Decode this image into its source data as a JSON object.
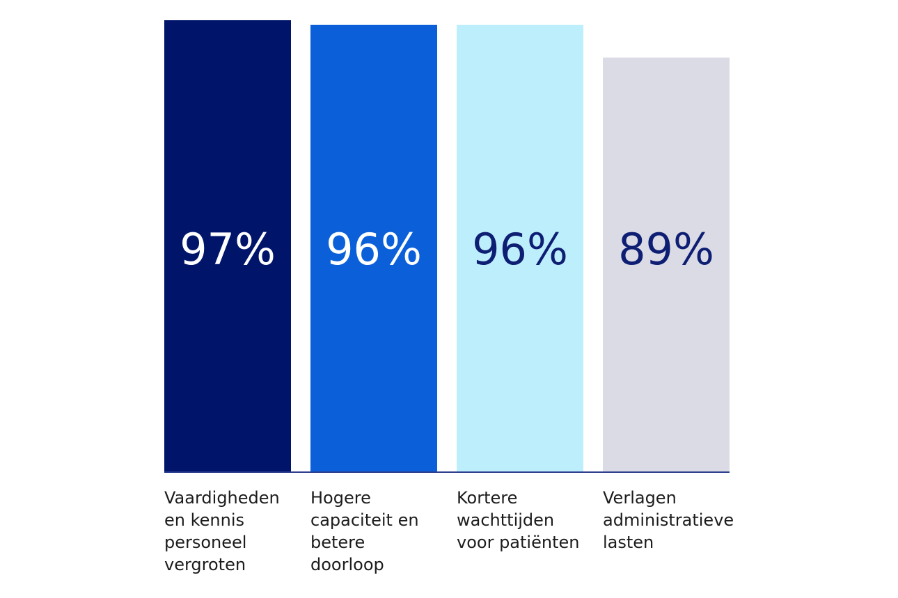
{
  "chart_data": {
    "type": "bar",
    "title": "",
    "xlabel": "",
    "ylabel": "",
    "categories": [
      [
        "Vaardigheden",
        "en kennis",
        "personeel",
        "vergroten"
      ],
      [
        "Hogere",
        "capaciteit en",
        "betere",
        "doorloop"
      ],
      [
        "Kortere",
        "wachttijden",
        "voor patiënten"
      ],
      [
        "Verlagen",
        "administratieve",
        "lasten"
      ]
    ],
    "values": [
      97,
      96,
      96,
      89
    ],
    "value_labels": [
      "97%",
      "96%",
      "96%",
      "89%"
    ],
    "unit": "%",
    "bar_colors": [
      "#00146a",
      "#0b60d9",
      "#bdeefc",
      "#dbdbe5"
    ],
    "label_colors": [
      "#ffffff",
      "#ffffff",
      "#0d1e73",
      "#0d1e73"
    ],
    "baseline_color": "#2b3d8f",
    "grid": false,
    "legend": "none"
  }
}
